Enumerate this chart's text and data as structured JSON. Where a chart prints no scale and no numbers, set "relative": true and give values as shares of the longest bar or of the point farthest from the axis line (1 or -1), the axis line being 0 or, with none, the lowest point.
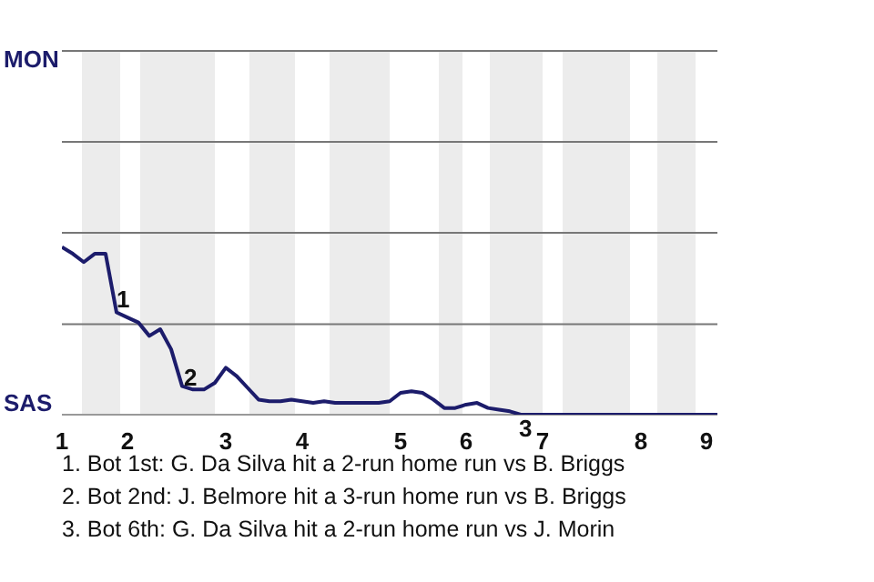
{
  "chart_data": {
    "type": "line",
    "relative": true,
    "categories": [
      "1",
      null,
      null,
      null,
      null,
      null,
      "2",
      null,
      null,
      null,
      null,
      null,
      null,
      null,
      null,
      "3",
      null,
      null,
      null,
      null,
      null,
      null,
      "4",
      null,
      null,
      null,
      null,
      null,
      null,
      null,
      null,
      "5",
      null,
      null,
      null,
      null,
      null,
      "6",
      null,
      null,
      null,
      null,
      null,
      null,
      "7",
      null,
      null,
      null,
      null,
      null,
      null,
      null,
      null,
      "8",
      null,
      null,
      null,
      null,
      null,
      "9",
      null
    ],
    "series": [
      {
        "color": "#1c1c6b",
        "values": [
          1,
          0.96,
          0.91,
          0.96,
          0.96,
          0.61,
          0.58,
          0.55,
          0.47,
          0.51,
          0.39,
          0.17,
          0.15,
          0.15,
          0.19,
          0.28,
          0.23,
          0.16,
          0.09,
          0.08,
          0.08,
          0.09,
          0.08,
          0.07,
          0.08,
          0.07,
          0.07,
          0.07,
          0.07,
          0.07,
          0.08,
          0.13,
          0.14,
          0.13,
          0.09,
          0.04,
          0.04,
          0.06,
          0.07,
          0.04,
          0.03,
          0.02,
          0,
          0,
          0,
          0,
          0,
          0,
          0,
          0,
          0,
          0,
          0,
          0,
          0,
          0,
          0,
          0,
          0,
          0,
          0
        ]
      }
    ],
    "marker": "none",
    "line_style": "solid",
    "legend": false,
    "ref_lines": [
      {
        "axis": "y",
        "value": 0.54,
        "color": "#777777"
      }
    ],
    "annotations": [
      "MON",
      "SAS",
      "1",
      "2",
      "3",
      "1. Bot 1st: G. Da Silva hit a 2-run home run vs B. Briggs",
      "2. Bot 2nd: J. Belmore hit a 3-run home run vs B. Briggs",
      "3. Bot 6th: G. Da Silva hit a 2-run home run vs J. Morin"
    ]
  }
}
